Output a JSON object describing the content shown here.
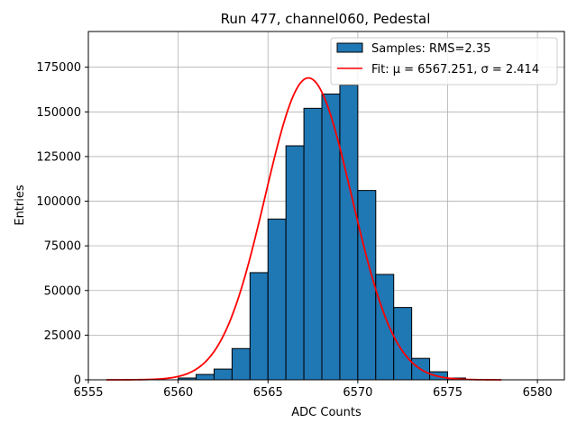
{
  "chart_data": {
    "type": "bar",
    "title": "Run 477, channel060, Pedestal",
    "xlabel": "ADC Counts",
    "ylabel": "Entries",
    "xlim": [
      6555,
      6581.5
    ],
    "ylim": [
      0,
      195000
    ],
    "grid": true,
    "legend_position": "top-right",
    "x_ticks": [
      6555,
      6560,
      6565,
      6570,
      6575,
      6580
    ],
    "y_ticks": [
      0,
      25000,
      50000,
      75000,
      100000,
      125000,
      150000,
      175000
    ],
    "histogram": {
      "name": "Samples: RMS=2.35",
      "bin_edges": [
        6560,
        6561,
        6562,
        6563,
        6564,
        6565,
        6566,
        6567,
        6568,
        6569,
        6570,
        6571,
        6572,
        6573,
        6574,
        6575,
        6576
      ],
      "counts": [
        1000,
        3000,
        6000,
        17500,
        60000,
        90000,
        131000,
        152000,
        160000,
        165000,
        106000,
        59000,
        40500,
        12000,
        4500,
        1000
      ],
      "color": "#1f77b4",
      "edgecolor": "#000000"
    },
    "fit": {
      "name": "Fit: μ = 6567.251, σ = 2.414",
      "mu": 6567.251,
      "sigma": 2.414,
      "amplitude": 169000,
      "x_range": [
        6556,
        6578
      ],
      "color": "#ff0000"
    }
  }
}
